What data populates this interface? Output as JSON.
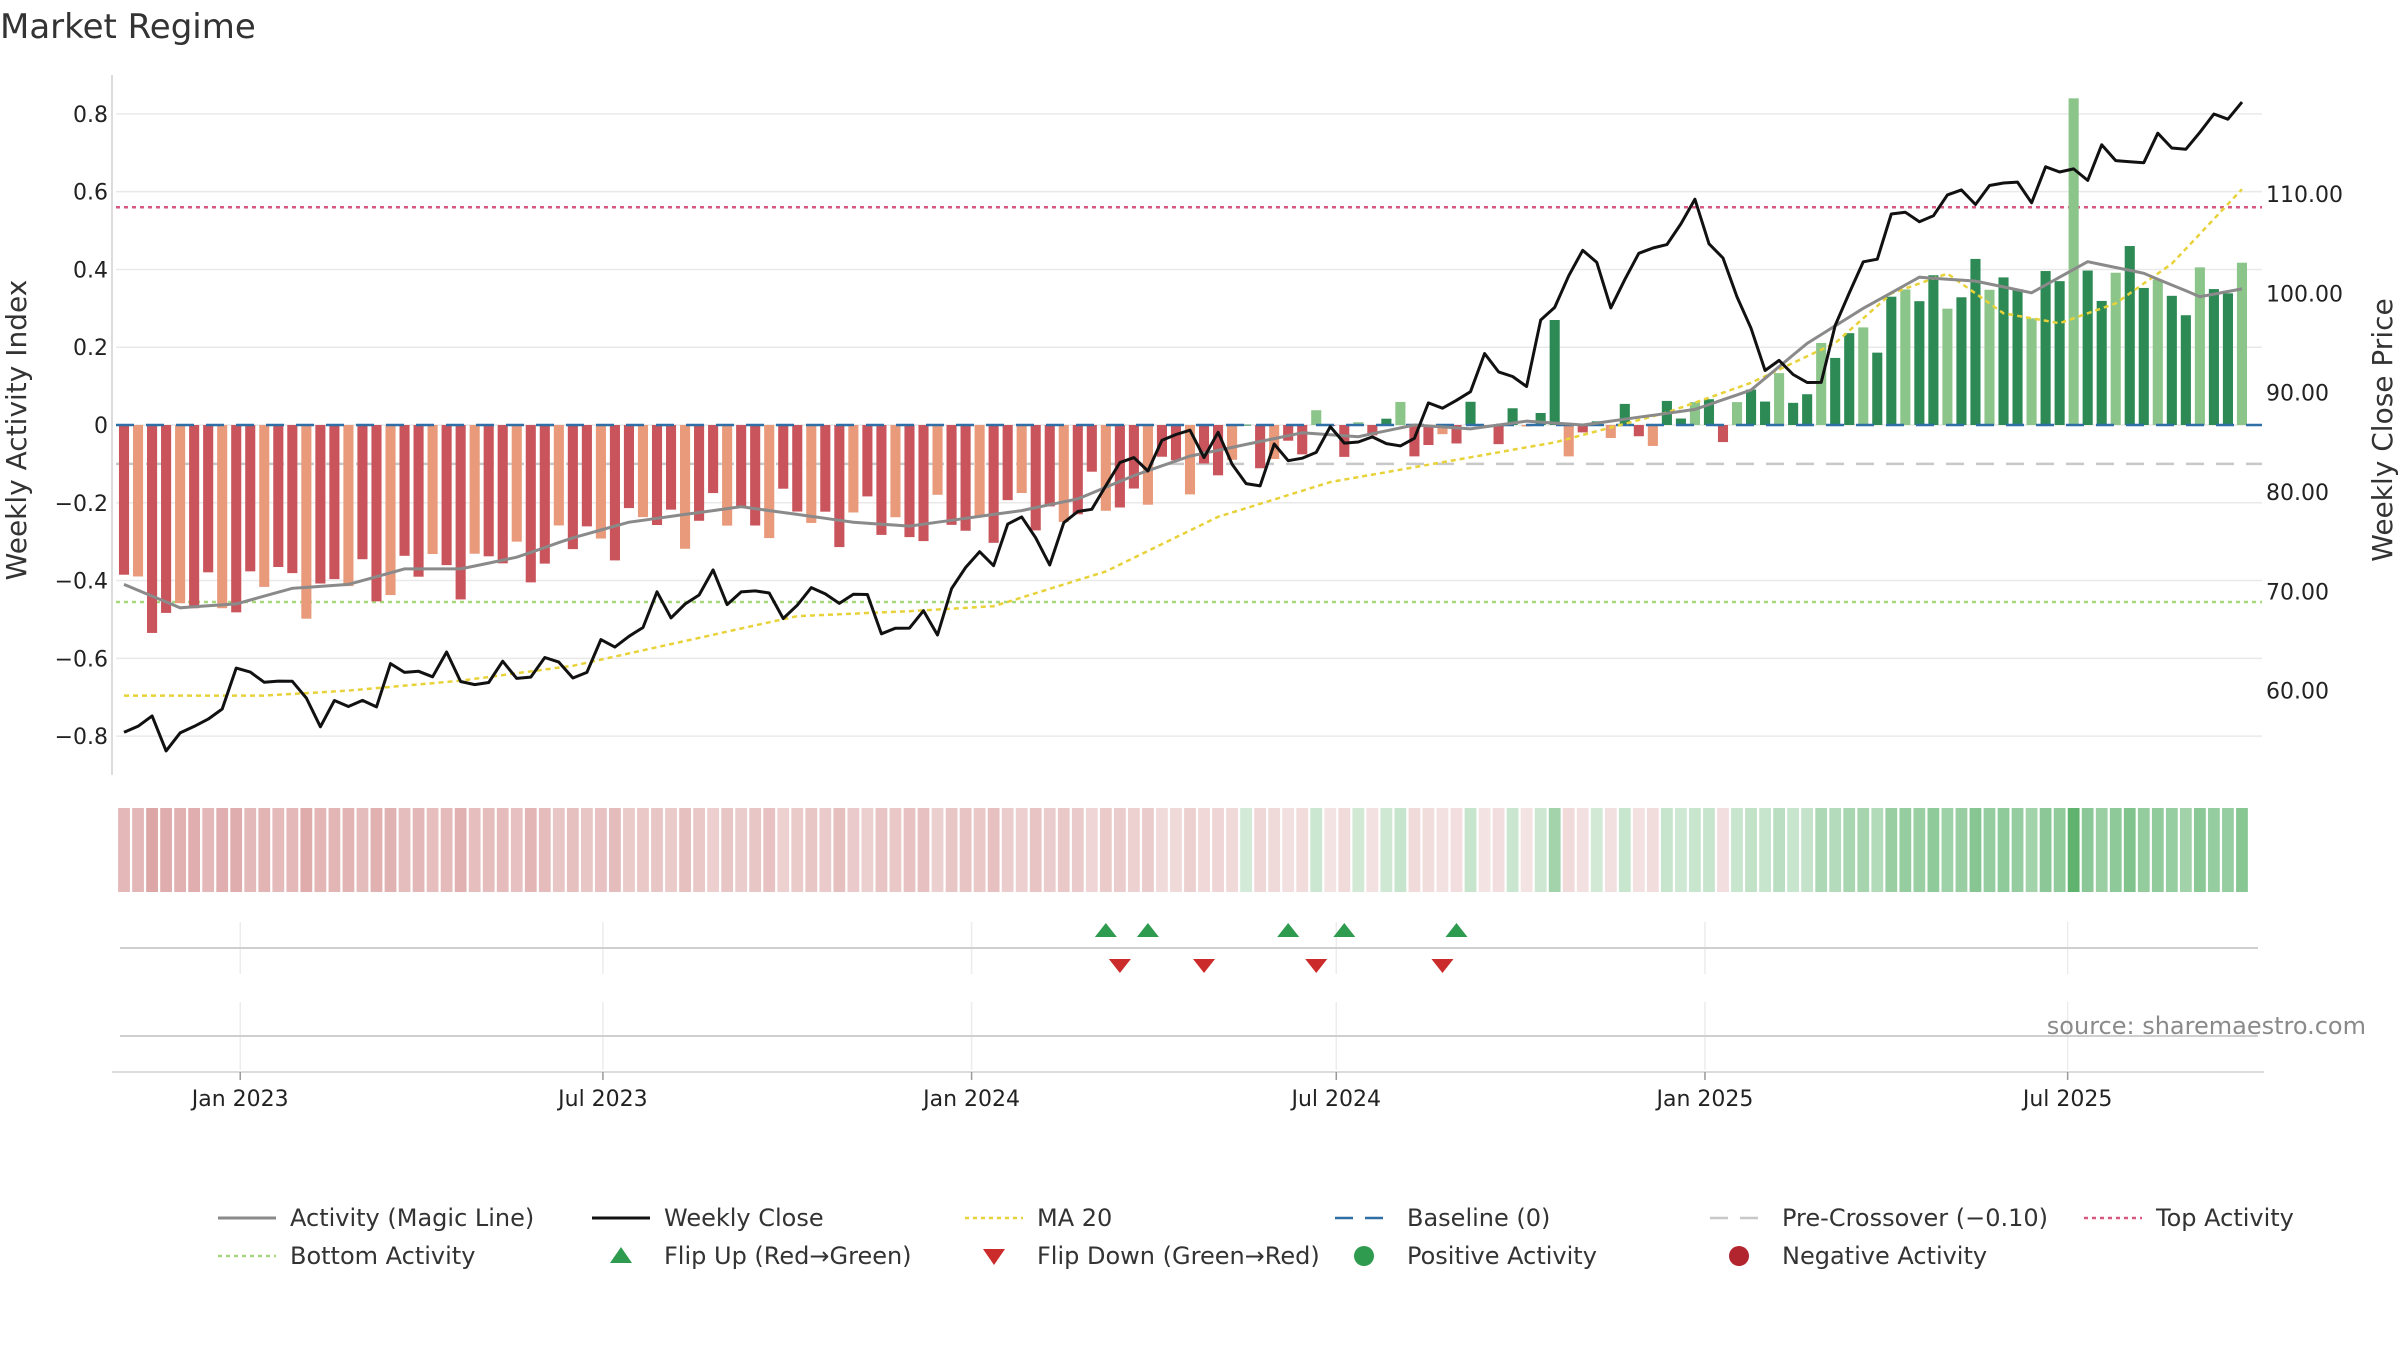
{
  "chart_data": {
    "type": "bar",
    "title": "Market Regime",
    "ylabel": "Weekly Activity Index",
    "y2label": "Weekly Close Price",
    "source": "source: sharemaestro.com",
    "ylim": [
      -0.9,
      0.9
    ],
    "y_ticks": [
      -0.8,
      -0.6,
      -0.4,
      -0.2,
      0,
      0.2,
      0.4,
      0.6,
      0.8
    ],
    "y_tick_labels": [
      "−0.8",
      "−0.6",
      "−0.4",
      "−0.2",
      "0",
      "0.2",
      "0.4",
      "0.6",
      "0.8"
    ],
    "y2lim": [
      51.5,
      122.0
    ],
    "y2_ticks": [
      60,
      70,
      80,
      90,
      100,
      110
    ],
    "y2_tick_labels": [
      "60.00",
      "70.00",
      "80.00",
      "90.00",
      "100.00",
      "110.00"
    ],
    "x_range": [
      "2022-10-31",
      "2025-10-06"
    ],
    "x_ticks": [
      {
        "date": "2023-01-01",
        "label": "Jan 2023"
      },
      {
        "date": "2023-07-01",
        "label": "Jul 2023"
      },
      {
        "date": "2024-01-01",
        "label": "Jan 2024"
      },
      {
        "date": "2024-07-01",
        "label": "Jul 2024"
      },
      {
        "date": "2025-01-01",
        "label": "Jan 2025"
      },
      {
        "date": "2025-07-01",
        "label": "Jul 2025"
      }
    ],
    "start_date": "2022-11-04",
    "weeks": 152,
    "reference_lines": {
      "baseline": 0,
      "pre_crossover": -0.1,
      "top_activity": 0.56,
      "bottom_activity": -0.455
    },
    "activity_anchors": [
      [
        0,
        -0.42
      ],
      [
        3,
        -0.48
      ],
      [
        6,
        -0.45
      ],
      [
        10,
        -0.4
      ],
      [
        14,
        -0.42
      ],
      [
        18,
        -0.4
      ],
      [
        22,
        -0.37
      ],
      [
        26,
        -0.36
      ],
      [
        30,
        -0.33
      ],
      [
        34,
        -0.28
      ],
      [
        38,
        -0.25
      ],
      [
        42,
        -0.24
      ],
      [
        46,
        -0.23
      ],
      [
        50,
        -0.24
      ],
      [
        54,
        -0.25
      ],
      [
        58,
        -0.26
      ],
      [
        62,
        -0.24
      ],
      [
        66,
        -0.22
      ],
      [
        70,
        -0.2
      ],
      [
        74,
        -0.14
      ],
      [
        78,
        -0.1
      ],
      [
        82,
        -0.06
      ],
      [
        86,
        -0.02
      ],
      [
        90,
        0.0
      ],
      [
        94,
        -0.04
      ],
      [
        98,
        0.02
      ],
      [
        102,
        0.0
      ],
      [
        106,
        -0.02
      ],
      [
        110,
        0.02
      ],
      [
        114,
        0.04
      ],
      [
        118,
        0.08
      ],
      [
        122,
        0.18
      ],
      [
        126,
        0.3
      ],
      [
        130,
        0.36
      ],
      [
        134,
        0.36
      ],
      [
        138,
        0.34
      ],
      [
        142,
        0.4
      ],
      [
        146,
        0.35
      ],
      [
        149,
        0.33
      ],
      [
        151,
        0.4
      ]
    ],
    "activity_line_anchors": [
      [
        0,
        -0.41
      ],
      [
        4,
        -0.47
      ],
      [
        8,
        -0.46
      ],
      [
        12,
        -0.42
      ],
      [
        16,
        -0.41
      ],
      [
        20,
        -0.37
      ],
      [
        24,
        -0.37
      ],
      [
        28,
        -0.34
      ],
      [
        32,
        -0.29
      ],
      [
        36,
        -0.25
      ],
      [
        40,
        -0.23
      ],
      [
        44,
        -0.21
      ],
      [
        48,
        -0.23
      ],
      [
        52,
        -0.25
      ],
      [
        56,
        -0.26
      ],
      [
        60,
        -0.24
      ],
      [
        64,
        -0.22
      ],
      [
        68,
        -0.19
      ],
      [
        72,
        -0.13
      ],
      [
        76,
        -0.08
      ],
      [
        80,
        -0.05
      ],
      [
        84,
        -0.02
      ],
      [
        88,
        -0.03
      ],
      [
        92,
        0.0
      ],
      [
        96,
        -0.01
      ],
      [
        100,
        0.01
      ],
      [
        104,
        0.0
      ],
      [
        108,
        0.02
      ],
      [
        112,
        0.04
      ],
      [
        116,
        0.09
      ],
      [
        120,
        0.21
      ],
      [
        124,
        0.3
      ],
      [
        128,
        0.38
      ],
      [
        132,
        0.37
      ],
      [
        136,
        0.34
      ],
      [
        140,
        0.42
      ],
      [
        144,
        0.39
      ],
      [
        148,
        0.33
      ],
      [
        151,
        0.35
      ]
    ],
    "close_anchors": [
      [
        0,
        55.0
      ],
      [
        2,
        57.0
      ],
      [
        4,
        54.5
      ],
      [
        6,
        57.5
      ],
      [
        8,
        61.0
      ],
      [
        10,
        62.0
      ],
      [
        12,
        60.0
      ],
      [
        14,
        58.0
      ],
      [
        16,
        58.0
      ],
      [
        18,
        60.0
      ],
      [
        20,
        62.0
      ],
      [
        22,
        62.5
      ],
      [
        24,
        61.5
      ],
      [
        26,
        61.0
      ],
      [
        28,
        62.0
      ],
      [
        30,
        62.5
      ],
      [
        32,
        62.0
      ],
      [
        34,
        63.5
      ],
      [
        36,
        66.0
      ],
      [
        38,
        68.0
      ],
      [
        40,
        69.0
      ],
      [
        42,
        70.5
      ],
      [
        44,
        70.0
      ],
      [
        46,
        69.0
      ],
      [
        48,
        68.5
      ],
      [
        50,
        70.0
      ],
      [
        52,
        69.5
      ],
      [
        54,
        67.0
      ],
      [
        56,
        66.0
      ],
      [
        58,
        67.5
      ],
      [
        60,
        72.0
      ],
      [
        62,
        74.5
      ],
      [
        64,
        77.0
      ],
      [
        66,
        74.0
      ],
      [
        68,
        77.5
      ],
      [
        70,
        81.0
      ],
      [
        72,
        83.0
      ],
      [
        74,
        84.5
      ],
      [
        76,
        86.0
      ],
      [
        78,
        84.5
      ],
      [
        80,
        81.0
      ],
      [
        82,
        83.0
      ],
      [
        84,
        84.0
      ],
      [
        86,
        85.0
      ],
      [
        88,
        86.0
      ],
      [
        90,
        84.0
      ],
      [
        92,
        86.5
      ],
      [
        94,
        88.5
      ],
      [
        96,
        91.0
      ],
      [
        98,
        93.0
      ],
      [
        100,
        91.0
      ],
      [
        102,
        100.0
      ],
      [
        104,
        104.0
      ],
      [
        106,
        100.0
      ],
      [
        108,
        103.0
      ],
      [
        110,
        106.0
      ],
      [
        112,
        108.0
      ],
      [
        114,
        104.0
      ],
      [
        116,
        95.0
      ],
      [
        118,
        93.0
      ],
      [
        120,
        90.0
      ],
      [
        122,
        96.0
      ],
      [
        124,
        103.0
      ],
      [
        126,
        107.0
      ],
      [
        128,
        108.0
      ],
      [
        130,
        109.0
      ],
      [
        132,
        110.5
      ],
      [
        134,
        110.5
      ],
      [
        136,
        111.0
      ],
      [
        138,
        112.0
      ],
      [
        140,
        113.0
      ],
      [
        142,
        113.5
      ],
      [
        144,
        114.0
      ],
      [
        146,
        115.0
      ],
      [
        148,
        116.0
      ],
      [
        150,
        118.0
      ],
      [
        151,
        120.5
      ]
    ],
    "ma20_anchors": [
      [
        0,
        59.5
      ],
      [
        10,
        59.5
      ],
      [
        16,
        60.0
      ],
      [
        24,
        61.0
      ],
      [
        32,
        62.5
      ],
      [
        40,
        65.0
      ],
      [
        48,
        67.5
      ],
      [
        56,
        68.0
      ],
      [
        62,
        68.5
      ],
      [
        70,
        72.0
      ],
      [
        78,
        77.5
      ],
      [
        86,
        81.0
      ],
      [
        94,
        83.0
      ],
      [
        102,
        85.0
      ],
      [
        110,
        88.0
      ],
      [
        116,
        91.0
      ],
      [
        122,
        95.0
      ],
      [
        126,
        100.0
      ],
      [
        130,
        102.0
      ],
      [
        134,
        98.0
      ],
      [
        138,
        97.0
      ],
      [
        142,
        99.0
      ],
      [
        146,
        103.0
      ],
      [
        151,
        110.5
      ]
    ],
    "flip_up_weeks": [
      70,
      73,
      83,
      87,
      95
    ],
    "flip_down_weeks": [
      71,
      77,
      85,
      94
    ],
    "legend": [
      {
        "label": "Activity (Magic Line)",
        "style": "line",
        "color": "#8a8a8a"
      },
      {
        "label": "Weekly Close",
        "style": "line",
        "color": "#111111"
      },
      {
        "label": "MA 20",
        "style": "dotted",
        "color": "#e8d23a"
      },
      {
        "label": "Baseline (0)",
        "style": "dashed",
        "color": "#2f6fa6"
      },
      {
        "label": "Pre-Crossover (−0.10)",
        "style": "dashed",
        "color": "#c8c8c8"
      },
      {
        "label": "Top Activity",
        "style": "dotted",
        "color": "#d9587f"
      },
      {
        "label": "Bottom Activity",
        "style": "dotted",
        "color": "#a7d77c"
      },
      {
        "label": "Flip Up (Red→Green)",
        "style": "triangle-up",
        "color": "#2e9b4f"
      },
      {
        "label": "Flip Down (Green→Red)",
        "style": "triangle-down",
        "color": "#cc2b2b"
      },
      {
        "label": "Positive Activity",
        "style": "circle",
        "color": "#2e9b4f"
      },
      {
        "label": "Negative Activity",
        "style": "circle",
        "color": "#b2252e"
      }
    ]
  },
  "colors": {
    "neg_strong": "#c9545b",
    "neg_light": "#e89a7b",
    "pos_strong": "#2d8a55",
    "pos_light": "#8cc58a",
    "strip_neg": "#d89a9a",
    "strip_pos": "#5fb36f",
    "grid": "#e9e9e9"
  }
}
